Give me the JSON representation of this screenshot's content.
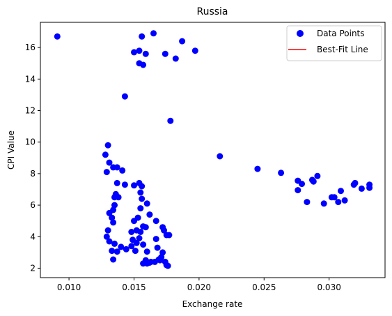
{
  "chart_data": {
    "type": "scatter",
    "title": "Russia",
    "xlabel": "Exchange rate",
    "ylabel": "CPI Value",
    "xlim": [
      0.0078,
      0.0343
    ],
    "ylim": [
      1.4,
      17.6
    ],
    "xticks": [
      0.01,
      0.015,
      0.02,
      0.025,
      0.03
    ],
    "xtick_labels": [
      "0.010",
      "0.015",
      "0.020",
      "0.025",
      "0.030"
    ],
    "yticks": [
      2,
      4,
      6,
      8,
      10,
      12,
      14,
      16
    ],
    "ytick_labels": [
      "2",
      "4",
      "6",
      "8",
      "10",
      "12",
      "14",
      "16"
    ],
    "grid": false,
    "legend": {
      "position": "upper right",
      "entries": [
        {
          "label": "Data Points",
          "marker": "circle",
          "color": "#0000ff"
        },
        {
          "label": "Best-Fit Line",
          "marker": "line",
          "color": "#ff0000"
        }
      ]
    },
    "series": [
      {
        "name": "Data Points",
        "color": "#0000ff",
        "points": [
          [
            0.0091,
            16.7
          ],
          [
            0.015,
            15.7
          ],
          [
            0.0154,
            15.8
          ],
          [
            0.0156,
            16.7
          ],
          [
            0.0165,
            16.9
          ],
          [
            0.0187,
            16.4
          ],
          [
            0.0197,
            15.8
          ],
          [
            0.0154,
            15.0
          ],
          [
            0.0157,
            14.9
          ],
          [
            0.0159,
            15.6
          ],
          [
            0.0174,
            15.6
          ],
          [
            0.0182,
            15.3
          ],
          [
            0.0143,
            12.9
          ],
          [
            0.0178,
            11.35
          ],
          [
            0.013,
            9.8
          ],
          [
            0.0128,
            9.2
          ],
          [
            0.0131,
            8.7
          ],
          [
            0.0134,
            8.4
          ],
          [
            0.0137,
            8.4
          ],
          [
            0.0141,
            8.2
          ],
          [
            0.0129,
            8.1
          ],
          [
            0.0137,
            7.4
          ],
          [
            0.0143,
            7.3
          ],
          [
            0.015,
            7.25
          ],
          [
            0.0154,
            7.4
          ],
          [
            0.0156,
            7.2
          ],
          [
            0.0155,
            6.8
          ],
          [
            0.0136,
            6.7
          ],
          [
            0.0135,
            6.5
          ],
          [
            0.0138,
            6.5
          ],
          [
            0.0156,
            6.4
          ],
          [
            0.016,
            6.1
          ],
          [
            0.0135,
            6.0
          ],
          [
            0.0134,
            5.7
          ],
          [
            0.0131,
            5.5
          ],
          [
            0.0133,
            5.2
          ],
          [
            0.0134,
            4.9
          ],
          [
            0.0155,
            5.8
          ],
          [
            0.015,
            5.0
          ],
          [
            0.0153,
            5.2
          ],
          [
            0.0162,
            5.4
          ],
          [
            0.0167,
            5.0
          ],
          [
            0.0157,
            4.65
          ],
          [
            0.0159,
            4.6
          ],
          [
            0.0172,
            4.6
          ],
          [
            0.0173,
            4.4
          ],
          [
            0.0175,
            4.1
          ],
          [
            0.0177,
            4.1
          ],
          [
            0.013,
            4.4
          ],
          [
            0.0129,
            4.0
          ],
          [
            0.0131,
            3.7
          ],
          [
            0.0135,
            3.55
          ],
          [
            0.014,
            3.35
          ],
          [
            0.0133,
            3.1
          ],
          [
            0.0137,
            3.05
          ],
          [
            0.0134,
            2.55
          ],
          [
            0.0144,
            3.2
          ],
          [
            0.0148,
            3.4
          ],
          [
            0.0151,
            3.1
          ],
          [
            0.0149,
            3.8
          ],
          [
            0.0152,
            3.6
          ],
          [
            0.0154,
            3.9
          ],
          [
            0.0155,
            4.3
          ],
          [
            0.0148,
            4.3
          ],
          [
            0.0152,
            4.4
          ],
          [
            0.0157,
            3.5
          ],
          [
            0.016,
            3.05
          ],
          [
            0.0167,
            3.85
          ],
          [
            0.0168,
            3.3
          ],
          [
            0.017,
            2.5
          ],
          [
            0.0171,
            2.7
          ],
          [
            0.0172,
            3.0
          ],
          [
            0.0174,
            2.4
          ],
          [
            0.0175,
            2.2
          ],
          [
            0.0176,
            2.15
          ],
          [
            0.0157,
            2.3
          ],
          [
            0.016,
            2.3
          ],
          [
            0.0163,
            2.4
          ],
          [
            0.0166,
            2.4
          ],
          [
            0.0169,
            2.55
          ],
          [
            0.0159,
            2.5
          ],
          [
            0.0162,
            2.35
          ],
          [
            0.0216,
            9.1
          ],
          [
            0.0245,
            8.3
          ],
          [
            0.0263,
            8.05
          ],
          [
            0.0276,
            7.55
          ],
          [
            0.0279,
            7.35
          ],
          [
            0.0276,
            6.95
          ],
          [
            0.0287,
            7.6
          ],
          [
            0.0291,
            7.85
          ],
          [
            0.0288,
            7.5
          ],
          [
            0.0283,
            6.2
          ],
          [
            0.0296,
            6.1
          ],
          [
            0.0302,
            6.5
          ],
          [
            0.0304,
            6.5
          ],
          [
            0.0307,
            6.2
          ],
          [
            0.0309,
            6.9
          ],
          [
            0.0312,
            6.3
          ],
          [
            0.0319,
            7.3
          ],
          [
            0.032,
            7.4
          ],
          [
            0.0325,
            7.05
          ],
          [
            0.0331,
            7.3
          ],
          [
            0.0331,
            7.1
          ]
        ]
      }
    ]
  }
}
